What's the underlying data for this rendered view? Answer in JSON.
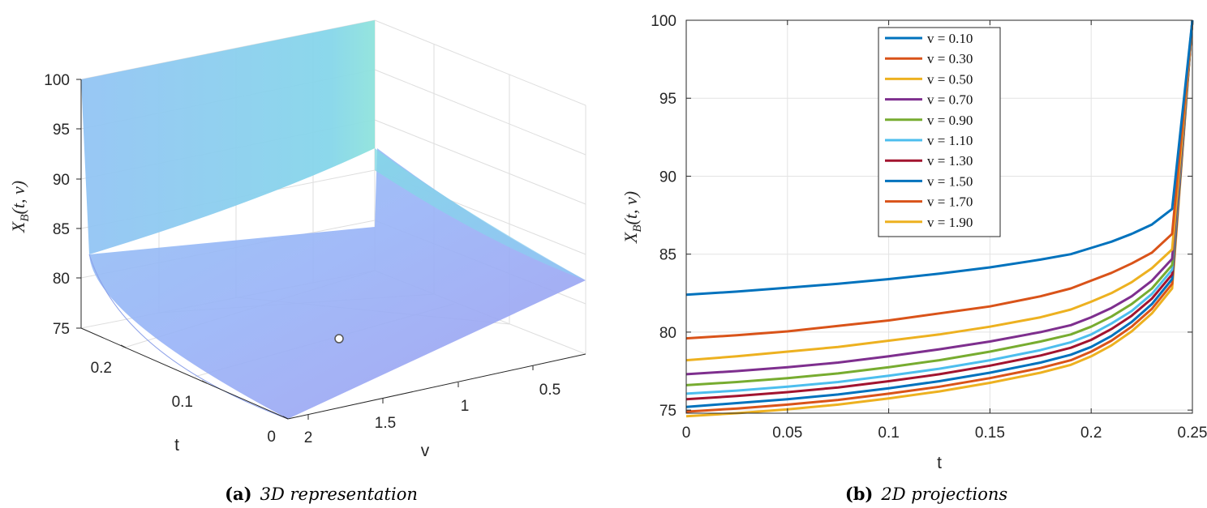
{
  "chart_data": [
    {
      "type": "surface",
      "xlabel": "v",
      "ylabel": "t",
      "zlabel": "X_B(t,v)",
      "zlabel_main": "X",
      "zlabel_sub": "B",
      "zlabel_args": "(t, v)",
      "zlim": [
        74,
        100
      ],
      "z_ticks": [
        "75",
        "80",
        "85",
        "90",
        "95",
        "100"
      ],
      "v_ticks": [
        "0.5",
        "1",
        "1.5",
        "2"
      ],
      "t_ticks": [
        "0",
        "0.1",
        "0.2"
      ],
      "v_range": [
        0.1,
        2
      ],
      "t_range": [
        0,
        0.25
      ],
      "corner_values": {
        "v_min_t_max": 100,
        "v_max_t_max": 100,
        "v_min_t_min": 82.4,
        "v_max_t_min": 74.5
      },
      "caption_label": "(a)",
      "caption_text": "3D representation"
    },
    {
      "type": "line",
      "xlabel": "t",
      "ylabel": "X_B(t,v)",
      "ylabel_main": "X",
      "ylabel_sub": "B",
      "ylabel_args": "(t, v)",
      "xlim": [
        0,
        0.25
      ],
      "ylim": [
        74.8,
        100
      ],
      "x_ticks": [
        "0",
        "0.05",
        "0.1",
        "0.15",
        "0.2",
        "0.25"
      ],
      "y_ticks": [
        "75",
        "80",
        "85",
        "90",
        "95",
        "100"
      ],
      "grid": true,
      "legend_position": "top-center",
      "x": [
        0,
        0.025,
        0.05,
        0.075,
        0.1,
        0.125,
        0.15,
        0.175,
        0.19,
        0.2,
        0.21,
        0.22,
        0.23,
        0.24,
        0.25
      ],
      "series": [
        {
          "name": "v = 0.10",
          "color": "#0072BD",
          "values": [
            82.4,
            82.6,
            82.85,
            83.1,
            83.4,
            83.75,
            84.15,
            84.65,
            85.0,
            85.4,
            85.8,
            86.3,
            86.9,
            87.9,
            100
          ]
        },
        {
          "name": "v = 0.30",
          "color": "#D95319",
          "values": [
            79.6,
            79.8,
            80.05,
            80.4,
            80.75,
            81.2,
            81.65,
            82.3,
            82.8,
            83.3,
            83.8,
            84.4,
            85.1,
            86.3,
            100
          ]
        },
        {
          "name": "v = 0.50",
          "color": "#EDB120",
          "values": [
            78.2,
            78.45,
            78.75,
            79.05,
            79.45,
            79.85,
            80.35,
            80.95,
            81.45,
            81.95,
            82.5,
            83.2,
            84.1,
            85.3,
            100
          ]
        },
        {
          "name": "v = 0.70",
          "color": "#7E2F8E",
          "values": [
            77.3,
            77.5,
            77.75,
            78.05,
            78.45,
            78.9,
            79.4,
            80.0,
            80.45,
            80.95,
            81.55,
            82.3,
            83.3,
            84.7,
            100
          ]
        },
        {
          "name": "v = 0.90",
          "color": "#77AC30",
          "values": [
            76.6,
            76.8,
            77.05,
            77.35,
            77.75,
            78.2,
            78.75,
            79.4,
            79.85,
            80.35,
            81.0,
            81.8,
            82.8,
            84.3,
            100
          ]
        },
        {
          "name": "v = 1.10",
          "color": "#4DBEEE",
          "values": [
            76.05,
            76.25,
            76.5,
            76.8,
            77.2,
            77.65,
            78.2,
            78.85,
            79.35,
            79.85,
            80.55,
            81.35,
            82.45,
            84.0,
            100
          ]
        },
        {
          "name": "v = 1.30",
          "color": "#A2142F",
          "values": [
            75.7,
            75.9,
            76.15,
            76.45,
            76.85,
            77.3,
            77.85,
            78.5,
            79.0,
            79.5,
            80.2,
            81.05,
            82.15,
            83.7,
            100
          ]
        },
        {
          "name": "v = 1.50",
          "color": "#0072BD",
          "values": [
            75.2,
            75.45,
            75.7,
            76.0,
            76.4,
            76.85,
            77.4,
            78.05,
            78.55,
            79.05,
            79.75,
            80.65,
            81.8,
            83.4,
            100
          ]
        },
        {
          "name": "v = 1.70",
          "color": "#D95319",
          "values": [
            74.9,
            75.1,
            75.35,
            75.65,
            76.05,
            76.5,
            77.05,
            77.7,
            78.2,
            78.75,
            79.45,
            80.35,
            81.5,
            83.1,
            100
          ]
        },
        {
          "name": "v = 1.90",
          "color": "#EDB120",
          "values": [
            74.6,
            74.8,
            75.05,
            75.35,
            75.75,
            76.2,
            76.75,
            77.4,
            77.9,
            78.45,
            79.15,
            80.05,
            81.2,
            82.8,
            100
          ]
        }
      ],
      "caption_label": "(b)",
      "caption_text": "2D projections"
    }
  ]
}
